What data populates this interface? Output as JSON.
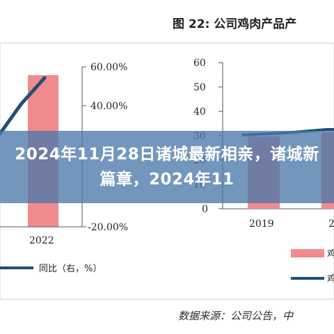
{
  "figure": {
    "title": "图 22: 公司鸡肉产品产",
    "source": "数据来源：公司公告，中"
  },
  "left_chart": {
    "x_label": "2022",
    "right_ticks": [
      "60.00%",
      "40.00%",
      "-20.00%"
    ],
    "legend_line": "同比（右，%）"
  },
  "right_chart": {
    "y_ticks": [
      "60",
      "50",
      "40",
      "30",
      "20",
      "10",
      "0"
    ],
    "x_labels": [
      "2019",
      "2"
    ],
    "legend_bar_label": "鸡",
    "legend_line_label": "鸡"
  },
  "banner": {
    "text": "2024年11月28日诸城最新相亲，诸城新篇章，2024年11"
  },
  "colors": {
    "bar": "#f28b8b",
    "line": "#1f4e79",
    "banner": "#4c78aa"
  }
}
